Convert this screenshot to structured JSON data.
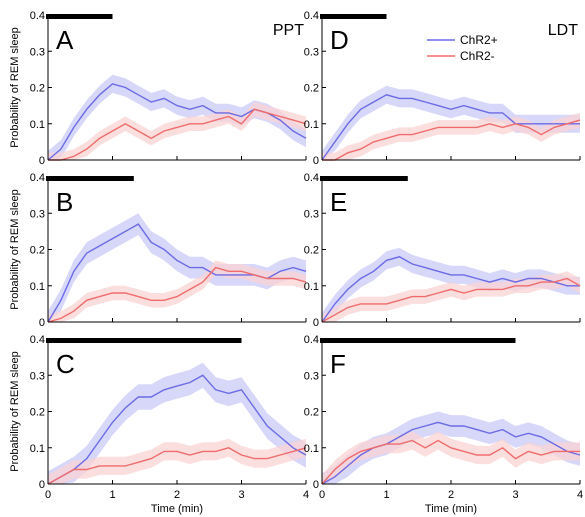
{
  "figure": {
    "ylabel": "Probability of REM sleep",
    "xlabel": "Time (min)",
    "region_labels": [
      "PPT",
      "LDT"
    ],
    "legend": [
      {
        "name": "ChR2+",
        "color": "#6b6be6"
      },
      {
        "name": "ChR2-",
        "color": "#f06c6c"
      }
    ],
    "band_colors": {
      "ChR2+": "#c9c9f7",
      "ChR2-": "#fad3d3"
    }
  },
  "chart_data": [
    {
      "type": "line",
      "panel": "A",
      "region": "PPT",
      "xlim": [
        0,
        4
      ],
      "ylim": [
        0,
        0.4
      ],
      "xticks": [
        "0",
        "1",
        "2",
        "3",
        "4"
      ],
      "yticks": [
        "0",
        "0.1",
        "0.2",
        "0.3",
        "0.4"
      ],
      "stim_bar": [
        0,
        1
      ],
      "series": [
        {
          "name": "ChR2+",
          "x": [
            0,
            0.2,
            0.4,
            0.6,
            0.8,
            1.0,
            1.2,
            1.4,
            1.6,
            1.8,
            2.0,
            2.2,
            2.4,
            2.6,
            2.8,
            3.0,
            3.2,
            3.4,
            3.6,
            3.8,
            4.0
          ],
          "y": [
            0,
            0.03,
            0.09,
            0.14,
            0.18,
            0.21,
            0.2,
            0.18,
            0.16,
            0.17,
            0.15,
            0.14,
            0.15,
            0.13,
            0.13,
            0.12,
            0.14,
            0.13,
            0.11,
            0.08,
            0.06
          ],
          "err": 0.025
        },
        {
          "name": "ChR2-",
          "x": [
            0,
            0.2,
            0.4,
            0.6,
            0.8,
            1.0,
            1.2,
            1.4,
            1.6,
            1.8,
            2.0,
            2.2,
            2.4,
            2.6,
            2.8,
            3.0,
            3.2,
            3.4,
            3.6,
            3.8,
            4.0
          ],
          "y": [
            0,
            0,
            0.01,
            0.03,
            0.06,
            0.08,
            0.1,
            0.08,
            0.06,
            0.08,
            0.09,
            0.1,
            0.1,
            0.11,
            0.12,
            0.1,
            0.14,
            0.13,
            0.12,
            0.11,
            0.1
          ],
          "err": 0.02
        }
      ]
    },
    {
      "type": "line",
      "panel": "D",
      "region": "LDT",
      "xlim": [
        0,
        4
      ],
      "ylim": [
        0,
        0.4
      ],
      "xticks": [
        "0",
        "1",
        "2",
        "3",
        "4"
      ],
      "yticks": [
        "0",
        "0.1",
        "0.2",
        "0.3",
        "0.4"
      ],
      "stim_bar": [
        0,
        1
      ],
      "series": [
        {
          "name": "ChR2+",
          "x": [
            0,
            0.2,
            0.4,
            0.6,
            0.8,
            1.0,
            1.2,
            1.4,
            1.6,
            1.8,
            2.0,
            2.2,
            2.4,
            2.6,
            2.8,
            3.0,
            3.2,
            3.4,
            3.6,
            3.8,
            4.0
          ],
          "y": [
            0,
            0.05,
            0.1,
            0.14,
            0.16,
            0.18,
            0.17,
            0.17,
            0.16,
            0.15,
            0.14,
            0.15,
            0.14,
            0.13,
            0.13,
            0.1,
            0.1,
            0.1,
            0.1,
            0.1,
            0.1
          ],
          "err": 0.025
        },
        {
          "name": "ChR2-",
          "x": [
            0,
            0.2,
            0.4,
            0.6,
            0.8,
            1.0,
            1.2,
            1.4,
            1.6,
            1.8,
            2.0,
            2.2,
            2.4,
            2.6,
            2.8,
            3.0,
            3.2,
            3.4,
            3.6,
            3.8,
            4.0
          ],
          "y": [
            0,
            0,
            0.02,
            0.03,
            0.05,
            0.06,
            0.07,
            0.07,
            0.08,
            0.09,
            0.09,
            0.09,
            0.09,
            0.1,
            0.09,
            0.1,
            0.09,
            0.07,
            0.09,
            0.1,
            0.11
          ],
          "err": 0.02
        }
      ]
    },
    {
      "type": "line",
      "panel": "B",
      "region": "PPT",
      "xlim": [
        0,
        4
      ],
      "ylim": [
        0,
        0.4
      ],
      "xticks": [
        "0",
        "1",
        "2",
        "3",
        "4"
      ],
      "yticks": [
        "0",
        "0.1",
        "0.2",
        "0.3",
        "0.4"
      ],
      "stim_bar": [
        0,
        1.33
      ],
      "series": [
        {
          "name": "ChR2+",
          "x": [
            0,
            0.2,
            0.4,
            0.6,
            0.8,
            1.0,
            1.2,
            1.4,
            1.6,
            1.8,
            2.0,
            2.2,
            2.4,
            2.6,
            2.8,
            3.0,
            3.2,
            3.4,
            3.6,
            3.8,
            4.0
          ],
          "y": [
            0,
            0.06,
            0.14,
            0.19,
            0.21,
            0.23,
            0.25,
            0.27,
            0.22,
            0.2,
            0.17,
            0.15,
            0.15,
            0.13,
            0.13,
            0.13,
            0.13,
            0.12,
            0.14,
            0.15,
            0.14
          ],
          "err": 0.03
        },
        {
          "name": "ChR2-",
          "x": [
            0,
            0.2,
            0.4,
            0.6,
            0.8,
            1.0,
            1.2,
            1.4,
            1.6,
            1.8,
            2.0,
            2.2,
            2.4,
            2.6,
            2.8,
            3.0,
            3.2,
            3.4,
            3.6,
            3.8,
            4.0
          ],
          "y": [
            0,
            0.01,
            0.03,
            0.06,
            0.07,
            0.08,
            0.08,
            0.07,
            0.06,
            0.06,
            0.07,
            0.09,
            0.11,
            0.15,
            0.14,
            0.14,
            0.13,
            0.12,
            0.12,
            0.12,
            0.11
          ],
          "err": 0.02
        }
      ]
    },
    {
      "type": "line",
      "panel": "E",
      "region": "LDT",
      "xlim": [
        0,
        4
      ],
      "ylim": [
        0,
        0.4
      ],
      "xticks": [
        "0",
        "1",
        "2",
        "3",
        "4"
      ],
      "yticks": [
        "0",
        "0.1",
        "0.2",
        "0.3",
        "0.4"
      ],
      "stim_bar": [
        0,
        1.33
      ],
      "series": [
        {
          "name": "ChR2+",
          "x": [
            0,
            0.2,
            0.4,
            0.6,
            0.8,
            1.0,
            1.2,
            1.4,
            1.6,
            1.8,
            2.0,
            2.2,
            2.4,
            2.6,
            2.8,
            3.0,
            3.2,
            3.4,
            3.6,
            3.8,
            4.0
          ],
          "y": [
            0,
            0.05,
            0.09,
            0.12,
            0.14,
            0.17,
            0.18,
            0.16,
            0.15,
            0.14,
            0.13,
            0.13,
            0.12,
            0.11,
            0.12,
            0.11,
            0.12,
            0.12,
            0.11,
            0.1,
            0.1
          ],
          "err": 0.025
        },
        {
          "name": "ChR2-",
          "x": [
            0,
            0.2,
            0.4,
            0.6,
            0.8,
            1.0,
            1.2,
            1.4,
            1.6,
            1.8,
            2.0,
            2.2,
            2.4,
            2.6,
            2.8,
            3.0,
            3.2,
            3.4,
            3.6,
            3.8,
            4.0
          ],
          "y": [
            0,
            0.02,
            0.04,
            0.05,
            0.05,
            0.05,
            0.06,
            0.07,
            0.07,
            0.08,
            0.09,
            0.08,
            0.09,
            0.09,
            0.09,
            0.1,
            0.1,
            0.11,
            0.11,
            0.12,
            0.1
          ],
          "err": 0.02
        }
      ]
    },
    {
      "type": "line",
      "panel": "C",
      "region": "PPT",
      "xlim": [
        0,
        4
      ],
      "ylim": [
        0,
        0.4
      ],
      "xticks": [
        "0",
        "1",
        "2",
        "3",
        "4"
      ],
      "yticks": [
        "0",
        "0.1",
        "0.2",
        "0.3",
        "0.4"
      ],
      "stim_bar": [
        0,
        3
      ],
      "series": [
        {
          "name": "ChR2+",
          "x": [
            0,
            0.2,
            0.4,
            0.6,
            0.8,
            1.0,
            1.2,
            1.4,
            1.6,
            1.8,
            2.0,
            2.2,
            2.4,
            2.6,
            2.8,
            3.0,
            3.2,
            3.4,
            3.6,
            3.8,
            4.0
          ],
          "y": [
            0,
            0.02,
            0.04,
            0.07,
            0.12,
            0.17,
            0.21,
            0.24,
            0.24,
            0.26,
            0.27,
            0.28,
            0.3,
            0.26,
            0.25,
            0.26,
            0.21,
            0.16,
            0.13,
            0.1,
            0.08
          ],
          "err": 0.035
        },
        {
          "name": "ChR2-",
          "x": [
            0,
            0.2,
            0.4,
            0.6,
            0.8,
            1.0,
            1.2,
            1.4,
            1.6,
            1.8,
            2.0,
            2.2,
            2.4,
            2.6,
            2.8,
            3.0,
            3.2,
            3.4,
            3.6,
            3.8,
            4.0
          ],
          "y": [
            0,
            0.02,
            0.04,
            0.04,
            0.05,
            0.05,
            0.05,
            0.06,
            0.07,
            0.09,
            0.09,
            0.08,
            0.09,
            0.09,
            0.1,
            0.08,
            0.07,
            0.07,
            0.08,
            0.09,
            0.1
          ],
          "err": 0.025
        }
      ]
    },
    {
      "type": "line",
      "panel": "F",
      "region": "LDT",
      "xlim": [
        0,
        4
      ],
      "ylim": [
        0,
        0.4
      ],
      "xticks": [
        "0",
        "1",
        "2",
        "3",
        "4"
      ],
      "yticks": [
        "0",
        "0.1",
        "0.2",
        "0.3",
        "0.4"
      ],
      "stim_bar": [
        0,
        3
      ],
      "series": [
        {
          "name": "ChR2+",
          "x": [
            0,
            0.2,
            0.4,
            0.6,
            0.8,
            1.0,
            1.2,
            1.4,
            1.6,
            1.8,
            2.0,
            2.2,
            2.4,
            2.6,
            2.8,
            3.0,
            3.2,
            3.4,
            3.6,
            3.8,
            4.0
          ],
          "y": [
            0,
            0.02,
            0.05,
            0.08,
            0.1,
            0.11,
            0.13,
            0.15,
            0.16,
            0.17,
            0.16,
            0.16,
            0.15,
            0.14,
            0.15,
            0.13,
            0.14,
            0.13,
            0.11,
            0.09,
            0.08
          ],
          "err": 0.03
        },
        {
          "name": "ChR2-",
          "x": [
            0,
            0.2,
            0.4,
            0.6,
            0.8,
            1.0,
            1.2,
            1.4,
            1.6,
            1.8,
            2.0,
            2.2,
            2.4,
            2.6,
            2.8,
            3.0,
            3.2,
            3.4,
            3.6,
            3.8,
            4.0
          ],
          "y": [
            0,
            0.04,
            0.07,
            0.09,
            0.1,
            0.11,
            0.11,
            0.12,
            0.1,
            0.12,
            0.1,
            0.09,
            0.08,
            0.08,
            0.1,
            0.07,
            0.09,
            0.08,
            0.09,
            0.09,
            0.09
          ],
          "err": 0.025
        }
      ]
    }
  ]
}
